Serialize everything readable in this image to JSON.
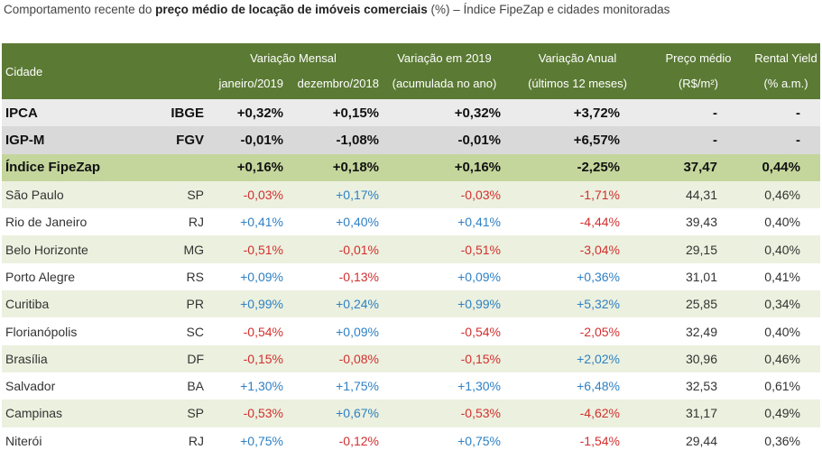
{
  "caption": {
    "prefix": "Comportamento recente do ",
    "bold": "preço médio de locação de imóveis comerciais",
    "suffix": " (%) – Índice FipeZap e cidades monitoradas"
  },
  "header": {
    "cidade": "Cidade",
    "variacao_mensal": "Variação Mensal",
    "janeiro": "janeiro/2019",
    "dezembro": "dezembro/2018",
    "variacao_2019": "Variação em 2019",
    "acumulada": "(acumulada no ano)",
    "variacao_anual": "Variação Anual",
    "ultimos": "(últimos 12 meses)",
    "preco_medio": "Preço médio",
    "preco_unit": "(R$/m²)",
    "rental_yield": "Rental Yield",
    "yield_unit": "(% a.m.)"
  },
  "rows": [
    {
      "name": "IPCA",
      "src": "IBGE",
      "jan": "+0,32%",
      "dez": "+0,15%",
      "ytd": "+0,32%",
      "anual": "+3,72%",
      "preco": "-",
      "yield": "-"
    },
    {
      "name": "IGP-M",
      "src": "FGV",
      "jan": "-0,01%",
      "dez": "-1,08%",
      "ytd": "-0,01%",
      "anual": "+6,57%",
      "preco": "-",
      "yield": "-"
    },
    {
      "name": "Índice FipeZap",
      "src": "",
      "jan": "+0,16%",
      "dez": "+0,18%",
      "ytd": "+0,16%",
      "anual": "-2,25%",
      "preco": "37,47",
      "yield": "0,44%"
    },
    {
      "name": "São Paulo",
      "src": "SP",
      "jan": "-0,03%",
      "dez": "+0,17%",
      "ytd": "-0,03%",
      "anual": "-1,71%",
      "preco": "44,31",
      "yield": "0,46%"
    },
    {
      "name": "Rio de Janeiro",
      "src": "RJ",
      "jan": "+0,41%",
      "dez": "+0,40%",
      "ytd": "+0,41%",
      "anual": "-4,44%",
      "preco": "39,43",
      "yield": "0,40%"
    },
    {
      "name": "Belo Horizonte",
      "src": "MG",
      "jan": "-0,51%",
      "dez": "-0,01%",
      "ytd": "-0,51%",
      "anual": "-3,04%",
      "preco": "29,15",
      "yield": "0,40%"
    },
    {
      "name": "Porto Alegre",
      "src": "RS",
      "jan": "+0,09%",
      "dez": "-0,13%",
      "ytd": "+0,09%",
      "anual": "+0,36%",
      "preco": "31,01",
      "yield": "0,41%"
    },
    {
      "name": "Curitiba",
      "src": "PR",
      "jan": "+0,99%",
      "dez": "+0,24%",
      "ytd": "+0,99%",
      "anual": "+5,32%",
      "preco": "25,85",
      "yield": "0,34%"
    },
    {
      "name": "Florianópolis",
      "src": "SC",
      "jan": "-0,54%",
      "dez": "+0,09%",
      "ytd": "-0,54%",
      "anual": "-2,05%",
      "preco": "32,49",
      "yield": "0,40%"
    },
    {
      "name": "Brasília",
      "src": "DF",
      "jan": "-0,15%",
      "dez": "-0,08%",
      "ytd": "-0,15%",
      "anual": "+2,02%",
      "preco": "30,96",
      "yield": "0,46%"
    },
    {
      "name": "Salvador",
      "src": "BA",
      "jan": "+1,30%",
      "dez": "+1,75%",
      "ytd": "+1,30%",
      "anual": "+6,48%",
      "preco": "32,53",
      "yield": "0,61%"
    },
    {
      "name": "Campinas",
      "src": "SP",
      "jan": "-0,53%",
      "dez": "+0,67%",
      "ytd": "-0,53%",
      "anual": "-4,62%",
      "preco": "31,17",
      "yield": "0,49%"
    },
    {
      "name": "Niterói",
      "src": "RJ",
      "jan": "+0,75%",
      "dez": "-0,12%",
      "ytd": "+0,75%",
      "anual": "-1,54%",
      "preco": "29,44",
      "yield": "0,36%"
    }
  ],
  "colors": {
    "header_bg": "#5b7a34",
    "fipezap_bg": "#c4d69b",
    "alt_row_bg": "#ebf1de",
    "negative": "#d32f2f",
    "positive": "#2f80c4"
  }
}
